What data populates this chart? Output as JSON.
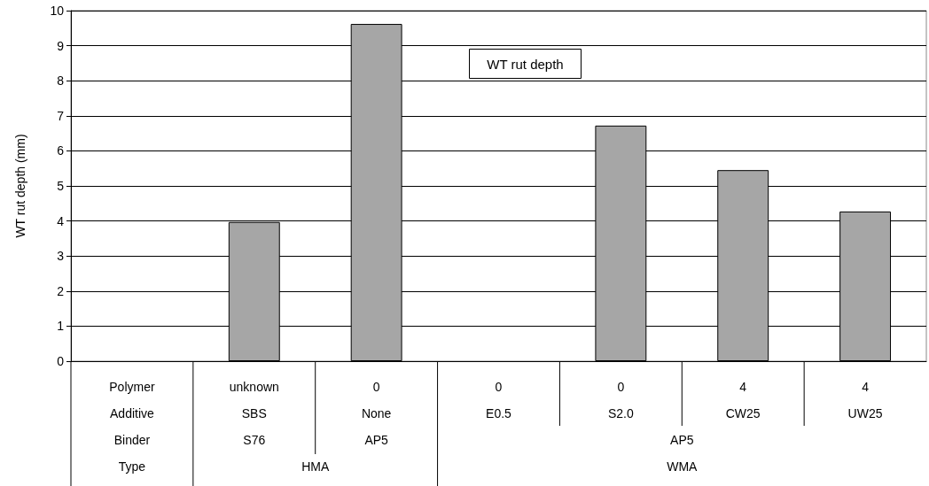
{
  "chart_data": {
    "type": "bar",
    "ylabel": "WT rut depth (mm)",
    "categories": [
      "Polymer\nAdditive",
      "unknown\nSBS",
      "0\nNone",
      "0\nE0.5",
      "0\nS2.0",
      "4\nCW25",
      "4\nUW25"
    ],
    "values": [
      null,
      3.97,
      9.62,
      null,
      6.72,
      5.45,
      4.27
    ],
    "color": "#a6a6a6",
    "ylim": [
      0,
      10
    ],
    "yticks": [
      0,
      1,
      2,
      3,
      4,
      5,
      6,
      7,
      8,
      9,
      10
    ],
    "grid": "y",
    "annotations": [
      "WT rut depth",
      "Binder",
      "S76",
      "AP5",
      "AP5",
      "Type",
      "HMA",
      "WMA"
    ]
  }
}
